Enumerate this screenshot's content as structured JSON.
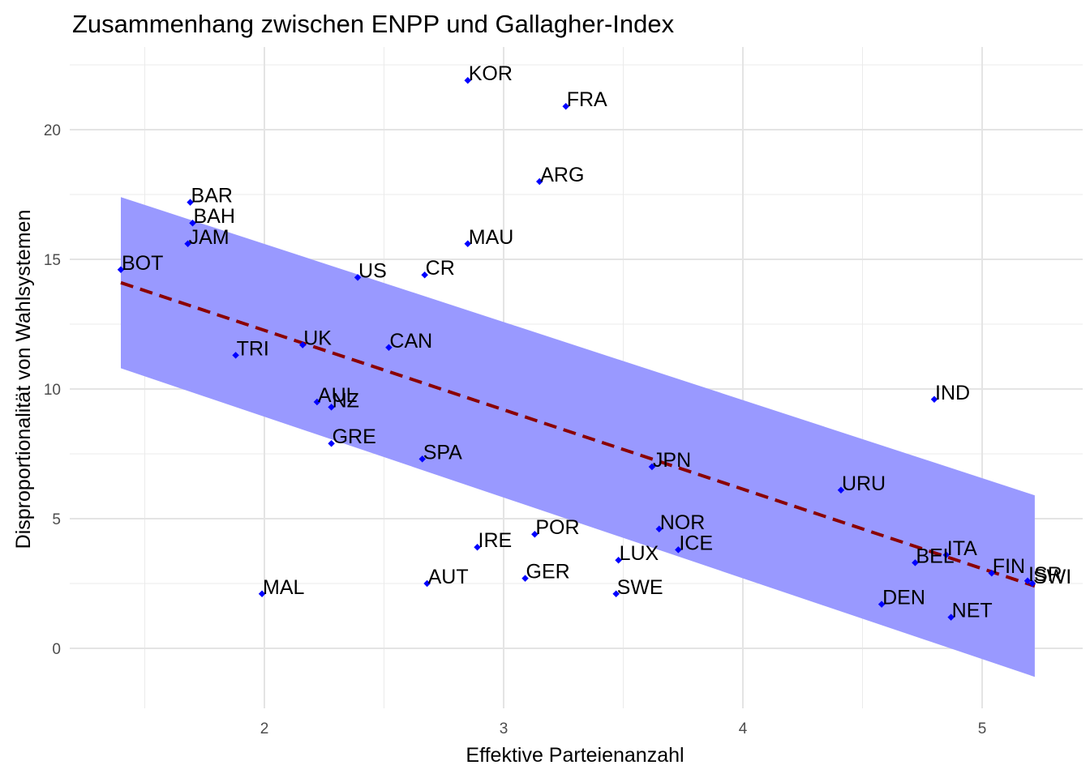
{
  "chart_data": {
    "type": "scatter",
    "title": "Zusammenhang zwischen ENPP und Gallagher-Index",
    "xlabel": "Effektive Parteienanzahl",
    "ylabel": "Disproportionalität von Wahlsystemen",
    "xlim": [
      1.2,
      5.4
    ],
    "ylim": [
      -2.2,
      23.1
    ],
    "x_ticks": [
      2,
      3,
      4,
      5
    ],
    "y_ticks": [
      0,
      5,
      10,
      15,
      20
    ],
    "x_tick_labels": [
      "2",
      "3",
      "4",
      "5"
    ],
    "y_tick_labels": [
      "0",
      "5",
      "10",
      "15",
      "20"
    ],
    "grid": true,
    "legend": "none",
    "colors": {
      "point": "#0000ff",
      "label": "#000000",
      "trend_line": "#8b0000",
      "confidence_band": "#9999ff",
      "grid": "#ebebeb",
      "grid_major": "#e4e4e4"
    },
    "points": [
      {
        "label": "KOR",
        "x": 2.85,
        "y": 21.9
      },
      {
        "label": "FRA",
        "x": 3.26,
        "y": 20.9
      },
      {
        "label": "ARG",
        "x": 3.15,
        "y": 18.0
      },
      {
        "label": "BAR",
        "x": 1.69,
        "y": 17.2
      },
      {
        "label": "BAH",
        "x": 1.7,
        "y": 16.4
      },
      {
        "label": "JAM",
        "x": 1.68,
        "y": 15.6
      },
      {
        "label": "MAU",
        "x": 2.85,
        "y": 15.6
      },
      {
        "label": "BOT",
        "x": 1.4,
        "y": 14.6
      },
      {
        "label": "US",
        "x": 2.39,
        "y": 14.3
      },
      {
        "label": "CR",
        "x": 2.67,
        "y": 14.4
      },
      {
        "label": "UK",
        "x": 2.16,
        "y": 11.7
      },
      {
        "label": "CAN",
        "x": 2.52,
        "y": 11.6
      },
      {
        "label": "TRI",
        "x": 1.88,
        "y": 11.3
      },
      {
        "label": "IND",
        "x": 4.8,
        "y": 9.6
      },
      {
        "label": "AUL",
        "x": 2.22,
        "y": 9.5
      },
      {
        "label": "NZ",
        "x": 2.28,
        "y": 9.3
      },
      {
        "label": "GRE",
        "x": 2.28,
        "y": 7.9
      },
      {
        "label": "SPA",
        "x": 2.66,
        "y": 7.3
      },
      {
        "label": "JPN",
        "x": 3.62,
        "y": 7.0
      },
      {
        "label": "URU",
        "x": 4.41,
        "y": 6.1
      },
      {
        "label": "NOR",
        "x": 3.65,
        "y": 4.6
      },
      {
        "label": "POR",
        "x": 3.13,
        "y": 4.4
      },
      {
        "label": "IRE",
        "x": 2.89,
        "y": 3.9
      },
      {
        "label": "ICE",
        "x": 3.73,
        "y": 3.8
      },
      {
        "label": "ITA",
        "x": 4.85,
        "y": 3.6
      },
      {
        "label": "LUX",
        "x": 3.48,
        "y": 3.4
      },
      {
        "label": "BEL",
        "x": 4.72,
        "y": 3.3
      },
      {
        "label": "FIN",
        "x": 5.04,
        "y": 2.9
      },
      {
        "label": "GER",
        "x": 3.09,
        "y": 2.7
      },
      {
        "label": "ISR",
        "x": 5.19,
        "y": 2.6
      },
      {
        "label": "SWI",
        "x": 5.21,
        "y": 2.5
      },
      {
        "label": "AUT",
        "x": 2.68,
        "y": 2.5
      },
      {
        "label": "MAL",
        "x": 1.99,
        "y": 2.1
      },
      {
        "label": "SWE",
        "x": 3.47,
        "y": 2.1
      },
      {
        "label": "DEN",
        "x": 4.58,
        "y": 1.7
      },
      {
        "label": "NET",
        "x": 4.87,
        "y": 1.2
      }
    ],
    "trend_line": {
      "type": "linear",
      "x": [
        1.4,
        5.22
      ],
      "y": [
        14.1,
        2.4
      ]
    },
    "confidence_band": {
      "x": [
        1.4,
        5.22
      ],
      "lower": [
        10.8,
        -1.1
      ],
      "upper": [
        17.4,
        5.9
      ]
    }
  }
}
